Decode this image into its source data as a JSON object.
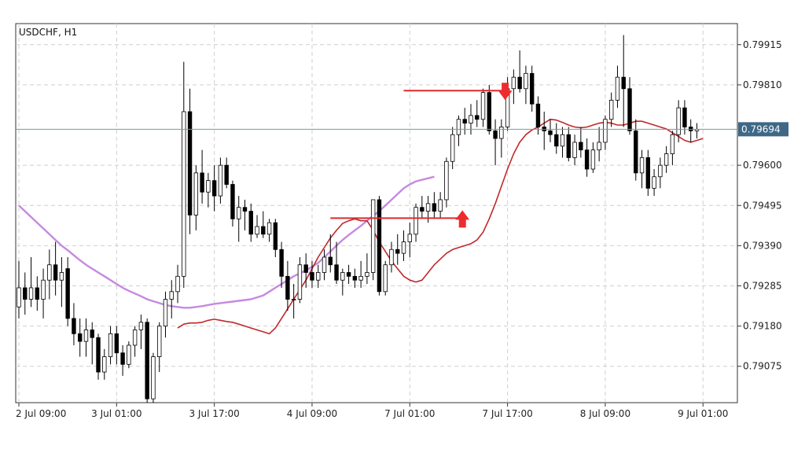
{
  "chart_data": {
    "type": "candlestick",
    "title": "USDCHF, H1",
    "current_price": 0.79694,
    "current_price_label": "0.79694",
    "y_ticks": [
      "0.79915",
      "0.79810",
      "0.79600",
      "0.79495",
      "0.79390",
      "0.79285",
      "0.79180",
      "0.79075"
    ],
    "y_tick_values": [
      0.79915,
      0.7981,
      0.796,
      0.79495,
      0.7939,
      0.79285,
      0.7918,
      0.79075
    ],
    "x_ticks": [
      "2 Jul 09:00",
      "3 Jul 01:00",
      "3 Jul 17:00",
      "4 Jul 09:00",
      "7 Jul 01:00",
      "7 Jul 17:00",
      "8 Jul 09:00",
      "9 Jul 01:00"
    ],
    "x_tick_index": [
      0,
      16,
      32,
      48,
      64,
      80,
      96,
      112
    ],
    "ylim": [
      0.7898,
      0.7997
    ],
    "grid": true,
    "candles": [
      [
        0.7923,
        0.7935,
        0.792,
        0.7928
      ],
      [
        0.7928,
        0.7932,
        0.7921,
        0.7925
      ],
      [
        0.7925,
        0.7936,
        0.7923,
        0.7928
      ],
      [
        0.7928,
        0.7931,
        0.7922,
        0.7925
      ],
      [
        0.7925,
        0.7933,
        0.792,
        0.793
      ],
      [
        0.793,
        0.7938,
        0.7925,
        0.7934
      ],
      [
        0.7934,
        0.794,
        0.7926,
        0.793
      ],
      [
        0.793,
        0.7936,
        0.7923,
        0.7932
      ],
      [
        0.7933,
        0.7936,
        0.7918,
        0.792
      ],
      [
        0.792,
        0.7924,
        0.7913,
        0.7916
      ],
      [
        0.7916,
        0.792,
        0.791,
        0.7914
      ],
      [
        0.7914,
        0.792,
        0.791,
        0.7917
      ],
      [
        0.7917,
        0.7919,
        0.7908,
        0.7915
      ],
      [
        0.7915,
        0.7916,
        0.7904,
        0.7906
      ],
      [
        0.7906,
        0.7912,
        0.7904,
        0.791
      ],
      [
        0.791,
        0.7918,
        0.7908,
        0.7916
      ],
      [
        0.7916,
        0.7918,
        0.7908,
        0.7911
      ],
      [
        0.7911,
        0.7913,
        0.7905,
        0.7908
      ],
      [
        0.7908,
        0.7914,
        0.7907,
        0.7913
      ],
      [
        0.7913,
        0.7918,
        0.791,
        0.7917
      ],
      [
        0.7917,
        0.7921,
        0.7912,
        0.7919
      ],
      [
        0.7919,
        0.792,
        0.7898,
        0.7899
      ],
      [
        0.7899,
        0.7911,
        0.7898,
        0.791
      ],
      [
        0.791,
        0.7919,
        0.7906,
        0.7918
      ],
      [
        0.7918,
        0.7927,
        0.7915,
        0.7925
      ],
      [
        0.7925,
        0.793,
        0.792,
        0.7927
      ],
      [
        0.7927,
        0.7934,
        0.7924,
        0.7931
      ],
      [
        0.7931,
        0.7987,
        0.7928,
        0.7974
      ],
      [
        0.7974,
        0.798,
        0.7942,
        0.7947
      ],
      [
        0.7947,
        0.796,
        0.7943,
        0.7958
      ],
      [
        0.7958,
        0.7964,
        0.795,
        0.7953
      ],
      [
        0.7953,
        0.7958,
        0.7949,
        0.7956
      ],
      [
        0.7956,
        0.796,
        0.7948,
        0.7952
      ],
      [
        0.7952,
        0.7962,
        0.795,
        0.796
      ],
      [
        0.796,
        0.7962,
        0.7954,
        0.7955
      ],
      [
        0.7955,
        0.7956,
        0.7944,
        0.7946
      ],
      [
        0.7946,
        0.7952,
        0.794,
        0.7949
      ],
      [
        0.7949,
        0.7951,
        0.7943,
        0.7948
      ],
      [
        0.7948,
        0.795,
        0.794,
        0.7942
      ],
      [
        0.7942,
        0.7947,
        0.7941,
        0.7944
      ],
      [
        0.7944,
        0.7948,
        0.7941,
        0.7942
      ],
      [
        0.7942,
        0.7946,
        0.794,
        0.7945
      ],
      [
        0.7945,
        0.7946,
        0.7936,
        0.7938
      ],
      [
        0.7938,
        0.794,
        0.7928,
        0.7931
      ],
      [
        0.7931,
        0.7935,
        0.7922,
        0.7925
      ],
      [
        0.7925,
        0.7929,
        0.792,
        0.7925
      ],
      [
        0.7925,
        0.7936,
        0.7924,
        0.7934
      ],
      [
        0.7934,
        0.7937,
        0.7928,
        0.7932
      ],
      [
        0.7932,
        0.7935,
        0.7928,
        0.793
      ],
      [
        0.793,
        0.7934,
        0.7928,
        0.7932
      ],
      [
        0.7932,
        0.7938,
        0.793,
        0.7936
      ],
      [
        0.7936,
        0.7942,
        0.7932,
        0.7934
      ],
      [
        0.7934,
        0.794,
        0.7929,
        0.793
      ],
      [
        0.793,
        0.7933,
        0.7926,
        0.7932
      ],
      [
        0.7932,
        0.7934,
        0.7929,
        0.7931
      ],
      [
        0.7931,
        0.7933,
        0.7928,
        0.793
      ],
      [
        0.793,
        0.7935,
        0.7928,
        0.7931
      ],
      [
        0.7931,
        0.7937,
        0.7929,
        0.7932
      ],
      [
        0.7932,
        0.7951,
        0.793,
        0.7951
      ],
      [
        0.7951,
        0.7952,
        0.7926,
        0.7927
      ],
      [
        0.7927,
        0.7935,
        0.7926,
        0.7934
      ],
      [
        0.7934,
        0.794,
        0.7932,
        0.7938
      ],
      [
        0.7938,
        0.7942,
        0.7934,
        0.7937
      ],
      [
        0.7937,
        0.7943,
        0.7935,
        0.794
      ],
      [
        0.794,
        0.7945,
        0.7936,
        0.7942
      ],
      [
        0.7942,
        0.795,
        0.794,
        0.7949
      ],
      [
        0.7949,
        0.7952,
        0.7946,
        0.7948
      ],
      [
        0.7948,
        0.7952,
        0.7945,
        0.795
      ],
      [
        0.795,
        0.7953,
        0.7946,
        0.7948
      ],
      [
        0.7948,
        0.7953,
        0.7946,
        0.7951
      ],
      [
        0.7951,
        0.7962,
        0.7949,
        0.7961
      ],
      [
        0.7961,
        0.797,
        0.7959,
        0.7968
      ],
      [
        0.7968,
        0.7973,
        0.7965,
        0.7972
      ],
      [
        0.7972,
        0.7975,
        0.7968,
        0.7971
      ],
      [
        0.7971,
        0.7976,
        0.7968,
        0.7973
      ],
      [
        0.7973,
        0.7977,
        0.797,
        0.7972
      ],
      [
        0.7972,
        0.798,
        0.797,
        0.7979
      ],
      [
        0.7979,
        0.7981,
        0.7968,
        0.7969
      ],
      [
        0.7969,
        0.7972,
        0.796,
        0.7967
      ],
      [
        0.7967,
        0.7972,
        0.7962,
        0.797
      ],
      [
        0.797,
        0.7983,
        0.7969,
        0.798
      ],
      [
        0.798,
        0.7985,
        0.7976,
        0.7983
      ],
      [
        0.7983,
        0.799,
        0.7979,
        0.798
      ],
      [
        0.798,
        0.7986,
        0.7976,
        0.7984
      ],
      [
        0.7984,
        0.7986,
        0.7974,
        0.7976
      ],
      [
        0.7976,
        0.7978,
        0.7968,
        0.797
      ],
      [
        0.797,
        0.7974,
        0.7964,
        0.7969
      ],
      [
        0.7969,
        0.7972,
        0.7966,
        0.7968
      ],
      [
        0.7968,
        0.7971,
        0.7963,
        0.7965
      ],
      [
        0.7965,
        0.797,
        0.7962,
        0.7968
      ],
      [
        0.7968,
        0.797,
        0.7961,
        0.7962
      ],
      [
        0.7962,
        0.7968,
        0.796,
        0.7966
      ],
      [
        0.7966,
        0.797,
        0.7962,
        0.7964
      ],
      [
        0.7964,
        0.7967,
        0.7957,
        0.7959
      ],
      [
        0.7959,
        0.7966,
        0.7958,
        0.7964
      ],
      [
        0.7964,
        0.797,
        0.7961,
        0.7966
      ],
      [
        0.7966,
        0.7973,
        0.7964,
        0.7972
      ],
      [
        0.7972,
        0.7979,
        0.797,
        0.7977
      ],
      [
        0.7977,
        0.7986,
        0.7975,
        0.7983
      ],
      [
        0.7983,
        0.7994,
        0.797,
        0.798
      ],
      [
        0.798,
        0.7983,
        0.7968,
        0.7969
      ],
      [
        0.7969,
        0.7972,
        0.7956,
        0.7958
      ],
      [
        0.7958,
        0.7964,
        0.7954,
        0.7962
      ],
      [
        0.7962,
        0.7964,
        0.7952,
        0.7954
      ],
      [
        0.7954,
        0.7959,
        0.7952,
        0.7957
      ],
      [
        0.7957,
        0.7962,
        0.7954,
        0.796
      ],
      [
        0.796,
        0.7965,
        0.7958,
        0.7963
      ],
      [
        0.7963,
        0.7969,
        0.796,
        0.7968
      ],
      [
        0.7968,
        0.7977,
        0.7966,
        0.7975
      ],
      [
        0.7975,
        0.7977,
        0.7968,
        0.797
      ],
      [
        0.797,
        0.7972,
        0.7966,
        0.7969
      ],
      [
        0.7969,
        0.7971,
        0.7967,
        0.79694
      ]
    ],
    "ma_fast": [
      0.79175,
      0.79185,
      0.79188,
      0.79188,
      0.7919,
      0.79195,
      0.79198,
      0.79195,
      0.79192,
      0.7919,
      0.79185,
      0.7918,
      0.79175,
      0.7917,
      0.79165,
      0.7916,
      0.79175,
      0.792,
      0.79225,
      0.7925,
      0.79275,
      0.793,
      0.7933,
      0.7936,
      0.79385,
      0.7941,
      0.7943,
      0.79448,
      0.79455,
      0.7946,
      0.79455,
      0.79455,
      0.7943,
      0.794,
      0.79375,
      0.7935,
      0.7933,
      0.7931,
      0.793,
      0.79295,
      0.793,
      0.7932,
      0.7934,
      0.79355,
      0.7937,
      0.7938,
      0.79385,
      0.7939,
      0.79395,
      0.79405,
      0.79425,
      0.7946,
      0.795,
      0.79545,
      0.7959,
      0.7963,
      0.7966,
      0.7968,
      0.79692,
      0.797,
      0.7971,
      0.7972,
      0.79718,
      0.79712,
      0.79705,
      0.797,
      0.79698,
      0.797,
      0.79705,
      0.7971,
      0.79712,
      0.7971,
      0.79705,
      0.79705,
      0.7971,
      0.79715,
      0.79715,
      0.7971,
      0.79705,
      0.797,
      0.79695,
      0.79685,
      0.79675,
      0.79665,
      0.7966,
      0.79665,
      0.7967
    ],
    "ma_fast_start_index": 26,
    "ma_slow": [
      0.79495,
      0.7948,
      0.79465,
      0.7945,
      0.79435,
      0.7942,
      0.79405,
      0.7939,
      0.79378,
      0.79365,
      0.79352,
      0.7934,
      0.7933,
      0.7932,
      0.7931,
      0.793,
      0.7929,
      0.7928,
      0.79272,
      0.79265,
      0.79258,
      0.7925,
      0.79245,
      0.7924,
      0.79235,
      0.79232,
      0.7923,
      0.79228,
      0.79228,
      0.7923,
      0.79232,
      0.79235,
      0.79238,
      0.7924,
      0.79242,
      0.79244,
      0.79246,
      0.79248,
      0.7925,
      0.79255,
      0.7926,
      0.7927,
      0.7928,
      0.7929,
      0.793,
      0.7931,
      0.79318,
      0.79325,
      0.79335,
      0.79345,
      0.7936,
      0.79375,
      0.7939,
      0.79405,
      0.79418,
      0.7943,
      0.79442,
      0.79455,
      0.79468,
      0.7948,
      0.79495,
      0.7951,
      0.79525,
      0.7954,
      0.7955,
      0.79558,
      0.79562,
      0.79566,
      0.7957
    ],
    "ma_fast_color": "#c0282b",
    "ma_slow_color": "#c58ae0",
    "bull_color": "#ffffff",
    "bear_color": "#000000",
    "resistance": {
      "value": 0.79795,
      "from_index": 63,
      "to_index": 80
    },
    "support": {
      "value": 0.79462,
      "from_index": 51,
      "to_index": 73
    },
    "arrow_down": {
      "index": 80,
      "value": 0.79795,
      "color": "#ee2b2f"
    },
    "arrow_up": {
      "index": 73,
      "value": 0.79462,
      "color": "#ee2b2f"
    },
    "level_line_color": "#dd2a2f",
    "price_line_color": "#7b96a6",
    "price_tag_color": "#3f6887"
  }
}
